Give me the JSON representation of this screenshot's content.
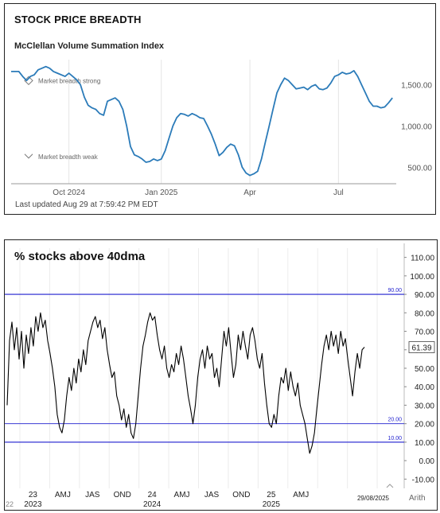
{
  "chart_data": [
    {
      "type": "line",
      "heading": "STOCK PRICE BREADTH",
      "title": "McClellan Volume Summation Index",
      "footer": "Last updated Aug 29 at 7:59:42 PM EDT",
      "ylim": [
        300,
        1900
      ],
      "yticks": [
        500,
        1000,
        1500
      ],
      "ytick_labels": [
        "500.00",
        "1,000.00",
        "1,500.00"
      ],
      "xlim": [
        0,
        100
      ],
      "xticks": [
        {
          "pos": 15,
          "label": "Oct 2024"
        },
        {
          "pos": 39,
          "label": "Jan 2025"
        },
        {
          "pos": 62,
          "label": "Apr"
        },
        {
          "pos": 85,
          "label": "Jul"
        }
      ],
      "annotations": [
        {
          "label": "Market breadth strong",
          "marker": "diamond",
          "value": 1550
        },
        {
          "label": "Market breadth weak",
          "marker": "chevron",
          "value": 630
        }
      ],
      "line_color": "#2b7bb9",
      "series": [
        {
          "values": [
            [
              0,
              1660
            ],
            [
              2,
              1660
            ],
            [
              3,
              1600
            ],
            [
              4,
              1550
            ],
            [
              5,
              1600
            ],
            [
              6,
              1620
            ],
            [
              7,
              1680
            ],
            [
              8,
              1700
            ],
            [
              9,
              1720
            ],
            [
              10,
              1700
            ],
            [
              11,
              1660
            ],
            [
              12,
              1640
            ],
            [
              14,
              1600
            ],
            [
              15,
              1640
            ],
            [
              16,
              1600
            ],
            [
              17,
              1560
            ],
            [
              18,
              1500
            ],
            [
              19,
              1350
            ],
            [
              20,
              1250
            ],
            [
              21,
              1220
            ],
            [
              22,
              1200
            ],
            [
              23,
              1150
            ],
            [
              24,
              1130
            ],
            [
              25,
              1300
            ],
            [
              26,
              1320
            ],
            [
              27,
              1340
            ],
            [
              28,
              1300
            ],
            [
              29,
              1200
            ],
            [
              30,
              1000
            ],
            [
              31,
              750
            ],
            [
              32,
              650
            ],
            [
              33,
              630
            ],
            [
              34,
              600
            ],
            [
              35,
              560
            ],
            [
              36,
              570
            ],
            [
              37,
              600
            ],
            [
              38,
              580
            ],
            [
              39,
              600
            ],
            [
              40,
              700
            ],
            [
              41,
              850
            ],
            [
              42,
              1000
            ],
            [
              43,
              1100
            ],
            [
              44,
              1150
            ],
            [
              45,
              1140
            ],
            [
              46,
              1120
            ],
            [
              47,
              1150
            ],
            [
              48,
              1130
            ],
            [
              49,
              1100
            ],
            [
              50,
              1090
            ],
            [
              51,
              1000
            ],
            [
              52,
              900
            ],
            [
              53,
              780
            ],
            [
              54,
              640
            ],
            [
              55,
              680
            ],
            [
              56,
              740
            ],
            [
              57,
              780
            ],
            [
              58,
              760
            ],
            [
              59,
              650
            ],
            [
              60,
              500
            ],
            [
              61,
              430
            ],
            [
              62,
              400
            ],
            [
              63,
              420
            ],
            [
              64,
              450
            ],
            [
              65,
              600
            ],
            [
              66,
              800
            ],
            [
              67,
              1000
            ],
            [
              68,
              1200
            ],
            [
              69,
              1400
            ],
            [
              70,
              1500
            ],
            [
              71,
              1580
            ],
            [
              72,
              1550
            ],
            [
              73,
              1500
            ],
            [
              74,
              1450
            ],
            [
              75,
              1460
            ],
            [
              76,
              1470
            ],
            [
              77,
              1440
            ],
            [
              78,
              1480
            ],
            [
              79,
              1500
            ],
            [
              80,
              1450
            ],
            [
              81,
              1440
            ],
            [
              82,
              1460
            ],
            [
              83,
              1520
            ],
            [
              84,
              1600
            ],
            [
              85,
              1620
            ],
            [
              86,
              1650
            ],
            [
              87,
              1630
            ],
            [
              88,
              1640
            ],
            [
              89,
              1670
            ],
            [
              90,
              1600
            ],
            [
              91,
              1500
            ],
            [
              92,
              1400
            ],
            [
              93,
              1300
            ],
            [
              94,
              1240
            ],
            [
              95,
              1240
            ],
            [
              96,
              1220
            ],
            [
              97,
              1230
            ],
            [
              98,
              1280
            ],
            [
              99,
              1340
            ]
          ]
        }
      ]
    },
    {
      "type": "line",
      "title": "% stocks above 40dma",
      "ylim": [
        -15,
        115
      ],
      "yticks": [
        -10,
        0,
        10,
        20,
        30,
        40,
        50,
        60,
        70,
        80,
        90,
        100,
        110
      ],
      "ytick_labels": [
        "-10.00",
        "0.00",
        "10.00",
        "20.00",
        "30.00",
        "40.00",
        "50.00",
        "60.00",
        "70.00",
        "80.00",
        "90.00",
        "100.00",
        "110.00"
      ],
      "hlines": [
        {
          "value": 90,
          "label": "90.00"
        },
        {
          "value": 20,
          "label": "20.00"
        },
        {
          "value": 10,
          "label": "10.00"
        }
      ],
      "last_value_label": "61.39",
      "last_value": 61.39,
      "scale_label": "Arith",
      "date_label": "29/08/2025",
      "xlim": [
        0,
        100
      ],
      "xticks": [
        {
          "pos": 6.5,
          "label": "23"
        },
        {
          "pos": 14,
          "label": "AMJ"
        },
        {
          "pos": 21.5,
          "label": "JAS"
        },
        {
          "pos": 29,
          "label": "OND"
        },
        {
          "pos": 36.5,
          "label": "24"
        },
        {
          "pos": 44,
          "label": "AMJ"
        },
        {
          "pos": 51.5,
          "label": "JAS"
        },
        {
          "pos": 59,
          "label": "OND"
        },
        {
          "pos": 66.5,
          "label": "25"
        },
        {
          "pos": 74,
          "label": "AMJ"
        }
      ],
      "year_labels": [
        {
          "pos": 6.5,
          "label": "2023"
        },
        {
          "pos": 36.5,
          "label": "2024"
        },
        {
          "pos": 66.5,
          "label": "2025"
        }
      ],
      "left_edge_label": "22",
      "line_color": "#000000",
      "hline_color": "#1f1fcf",
      "series": [
        {
          "values": [
            [
              0,
              30
            ],
            [
              0.6,
              65
            ],
            [
              1.2,
              75
            ],
            [
              1.8,
              60
            ],
            [
              2.4,
              72
            ],
            [
              3,
              55
            ],
            [
              3.6,
              70
            ],
            [
              4.2,
              50
            ],
            [
              4.8,
              68
            ],
            [
              5.4,
              58
            ],
            [
              6,
              72
            ],
            [
              6.6,
              62
            ],
            [
              7.2,
              78
            ],
            [
              7.8,
              70
            ],
            [
              8.4,
              80
            ],
            [
              9,
              72
            ],
            [
              9.6,
              76
            ],
            [
              10.2,
              65
            ],
            [
              10.8,
              58
            ],
            [
              11.4,
              50
            ],
            [
              12,
              40
            ],
            [
              12.6,
              25
            ],
            [
              13.2,
              18
            ],
            [
              13.8,
              15
            ],
            [
              14.4,
              22
            ],
            [
              15,
              35
            ],
            [
              15.6,
              45
            ],
            [
              16.2,
              38
            ],
            [
              16.8,
              50
            ],
            [
              17.4,
              42
            ],
            [
              18,
              55
            ],
            [
              18.6,
              48
            ],
            [
              19.2,
              60
            ],
            [
              19.8,
              52
            ],
            [
              20.4,
              65
            ],
            [
              21,
              70
            ],
            [
              21.6,
              75
            ],
            [
              22.2,
              78
            ],
            [
              22.8,
              72
            ],
            [
              23.4,
              76
            ],
            [
              24,
              66
            ],
            [
              24.6,
              72
            ],
            [
              25.2,
              60
            ],
            [
              25.8,
              52
            ],
            [
              26.4,
              45
            ],
            [
              27,
              48
            ],
            [
              27.6,
              35
            ],
            [
              28.2,
              30
            ],
            [
              28.8,
              22
            ],
            [
              29.4,
              28
            ],
            [
              30,
              18
            ],
            [
              30.6,
              25
            ],
            [
              31.2,
              15
            ],
            [
              31.8,
              12
            ],
            [
              32.4,
              20
            ],
            [
              33,
              35
            ],
            [
              33.6,
              50
            ],
            [
              34.2,
              62
            ],
            [
              34.8,
              68
            ],
            [
              35.4,
              75
            ],
            [
              36,
              80
            ],
            [
              36.6,
              76
            ],
            [
              37.2,
              78
            ],
            [
              37.8,
              68
            ],
            [
              38.4,
              60
            ],
            [
              39,
              55
            ],
            [
              39.6,
              62
            ],
            [
              40.2,
              50
            ],
            [
              40.8,
              45
            ],
            [
              41.4,
              52
            ],
            [
              42,
              48
            ],
            [
              42.6,
              58
            ],
            [
              43.2,
              52
            ],
            [
              43.8,
              62
            ],
            [
              44.4,
              55
            ],
            [
              45,
              45
            ],
            [
              45.6,
              35
            ],
            [
              46.2,
              28
            ],
            [
              46.8,
              20
            ],
            [
              47.4,
              30
            ],
            [
              48,
              45
            ],
            [
              48.6,
              55
            ],
            [
              49.2,
              60
            ],
            [
              49.8,
              50
            ],
            [
              50.4,
              62
            ],
            [
              51,
              55
            ],
            [
              51.6,
              58
            ],
            [
              52.2,
              45
            ],
            [
              52.8,
              50
            ],
            [
              53.4,
              40
            ],
            [
              54,
              55
            ],
            [
              54.6,
              70
            ],
            [
              55.2,
              62
            ],
            [
              55.8,
              72
            ],
            [
              56.4,
              58
            ],
            [
              57,
              45
            ],
            [
              57.6,
              52
            ],
            [
              58.2,
              68
            ],
            [
              58.8,
              60
            ],
            [
              59.4,
              70
            ],
            [
              60,
              62
            ],
            [
              60.6,
              55
            ],
            [
              61.2,
              68
            ],
            [
              61.8,
              72
            ],
            [
              62.4,
              65
            ],
            [
              63,
              55
            ],
            [
              63.6,
              50
            ],
            [
              64.2,
              58
            ],
            [
              64.8,
              42
            ],
            [
              65.4,
              30
            ],
            [
              66,
              20
            ],
            [
              66.6,
              18
            ],
            [
              67.2,
              25
            ],
            [
              67.8,
              20
            ],
            [
              68.4,
              35
            ],
            [
              69,
              45
            ],
            [
              69.6,
              42
            ],
            [
              70.2,
              50
            ],
            [
              70.8,
              38
            ],
            [
              71.4,
              48
            ],
            [
              72,
              40
            ],
            [
              72.6,
              35
            ],
            [
              73.2,
              42
            ],
            [
              73.8,
              30
            ],
            [
              74.4,
              25
            ],
            [
              75,
              20
            ],
            [
              75.6,
              12
            ],
            [
              76.2,
              4
            ],
            [
              76.8,
              8
            ],
            [
              77.4,
              15
            ],
            [
              78,
              28
            ],
            [
              78.6,
              40
            ],
            [
              79.2,
              52
            ],
            [
              79.8,
              62
            ],
            [
              80.4,
              68
            ],
            [
              81,
              60
            ],
            [
              81.6,
              70
            ],
            [
              82.2,
              62
            ],
            [
              82.8,
              68
            ],
            [
              83.4,
              58
            ],
            [
              84,
              70
            ],
            [
              84.6,
              62
            ],
            [
              85.2,
              66
            ],
            [
              85.8,
              55
            ],
            [
              86.4,
              45
            ],
            [
              87,
              35
            ],
            [
              87.6,
              48
            ],
            [
              88.2,
              58
            ],
            [
              88.8,
              50
            ],
            [
              89.4,
              60
            ],
            [
              90,
              61.39
            ]
          ]
        }
      ]
    }
  ]
}
